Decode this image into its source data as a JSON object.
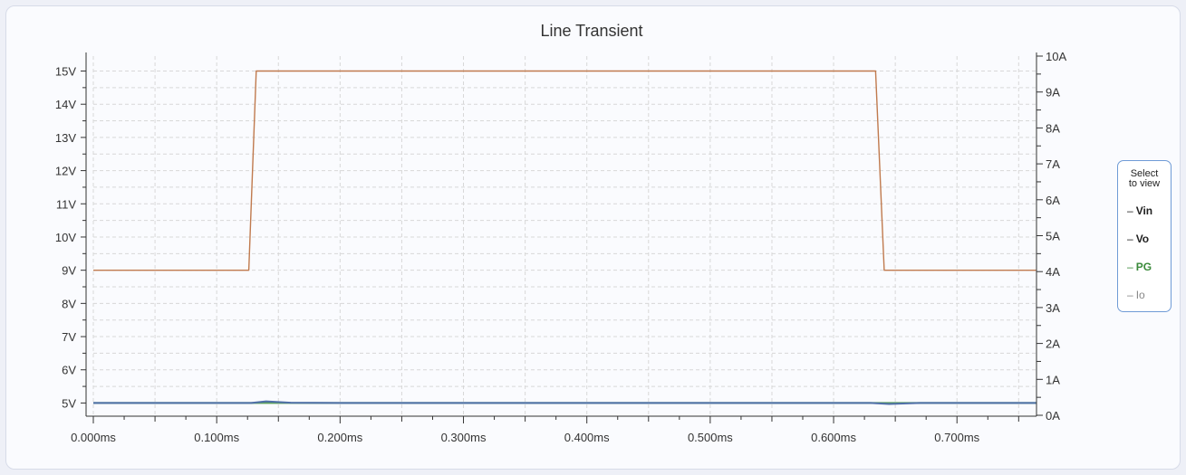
{
  "chart_data": {
    "type": "line",
    "title": "Line Transient",
    "x_ticks": [
      "0.000ms",
      "0.100ms",
      "0.200ms",
      "0.300ms",
      "0.400ms",
      "0.500ms",
      "0.600ms",
      "0.700ms"
    ],
    "xlim": [
      0,
      0.764
    ],
    "y_left_ticks": [
      "5V",
      "6V",
      "7V",
      "8V",
      "9V",
      "10V",
      "11V",
      "12V",
      "13V",
      "14V",
      "15V"
    ],
    "ylim_left": [
      4.63,
      15.45
    ],
    "y_right_ticks": [
      "0A",
      "1A",
      "2A",
      "3A",
      "4A",
      "5A",
      "6A",
      "7A",
      "8A",
      "9A",
      "10A"
    ],
    "ylim_right": [
      0,
      10
    ],
    "grid": true,
    "series": [
      {
        "name": "Vin",
        "axis": "left",
        "color": "#c07a4e",
        "x": [
          0.0,
          0.126,
          0.132,
          0.634,
          0.641,
          0.764
        ],
        "y": [
          9.0,
          9.0,
          15.0,
          15.0,
          9.0,
          9.0
        ]
      },
      {
        "name": "Vo",
        "axis": "left",
        "color": "#4f6fa8",
        "x": [
          0.0,
          0.128,
          0.14,
          0.16,
          0.2,
          0.63,
          0.645,
          0.67,
          0.764
        ],
        "y": [
          5.0,
          5.0,
          5.05,
          5.01,
          5.0,
          5.0,
          4.97,
          5.0,
          5.0
        ]
      },
      {
        "name": "PG",
        "axis": "left",
        "color": "#5aa05a",
        "x": [
          0.0,
          0.764
        ],
        "y": [
          5.0,
          5.0
        ]
      }
    ],
    "legend": {
      "placement": "right",
      "title_lines": [
        "Select",
        "to view"
      ],
      "items": [
        {
          "label": "Vin",
          "active": true,
          "color": "#222222"
        },
        {
          "label": "Vo",
          "active": true,
          "color": "#222222"
        },
        {
          "label": "PG",
          "active": true,
          "color": "#3a8a3a"
        },
        {
          "label": "Io",
          "active": false,
          "color": "#888888"
        }
      ]
    }
  }
}
